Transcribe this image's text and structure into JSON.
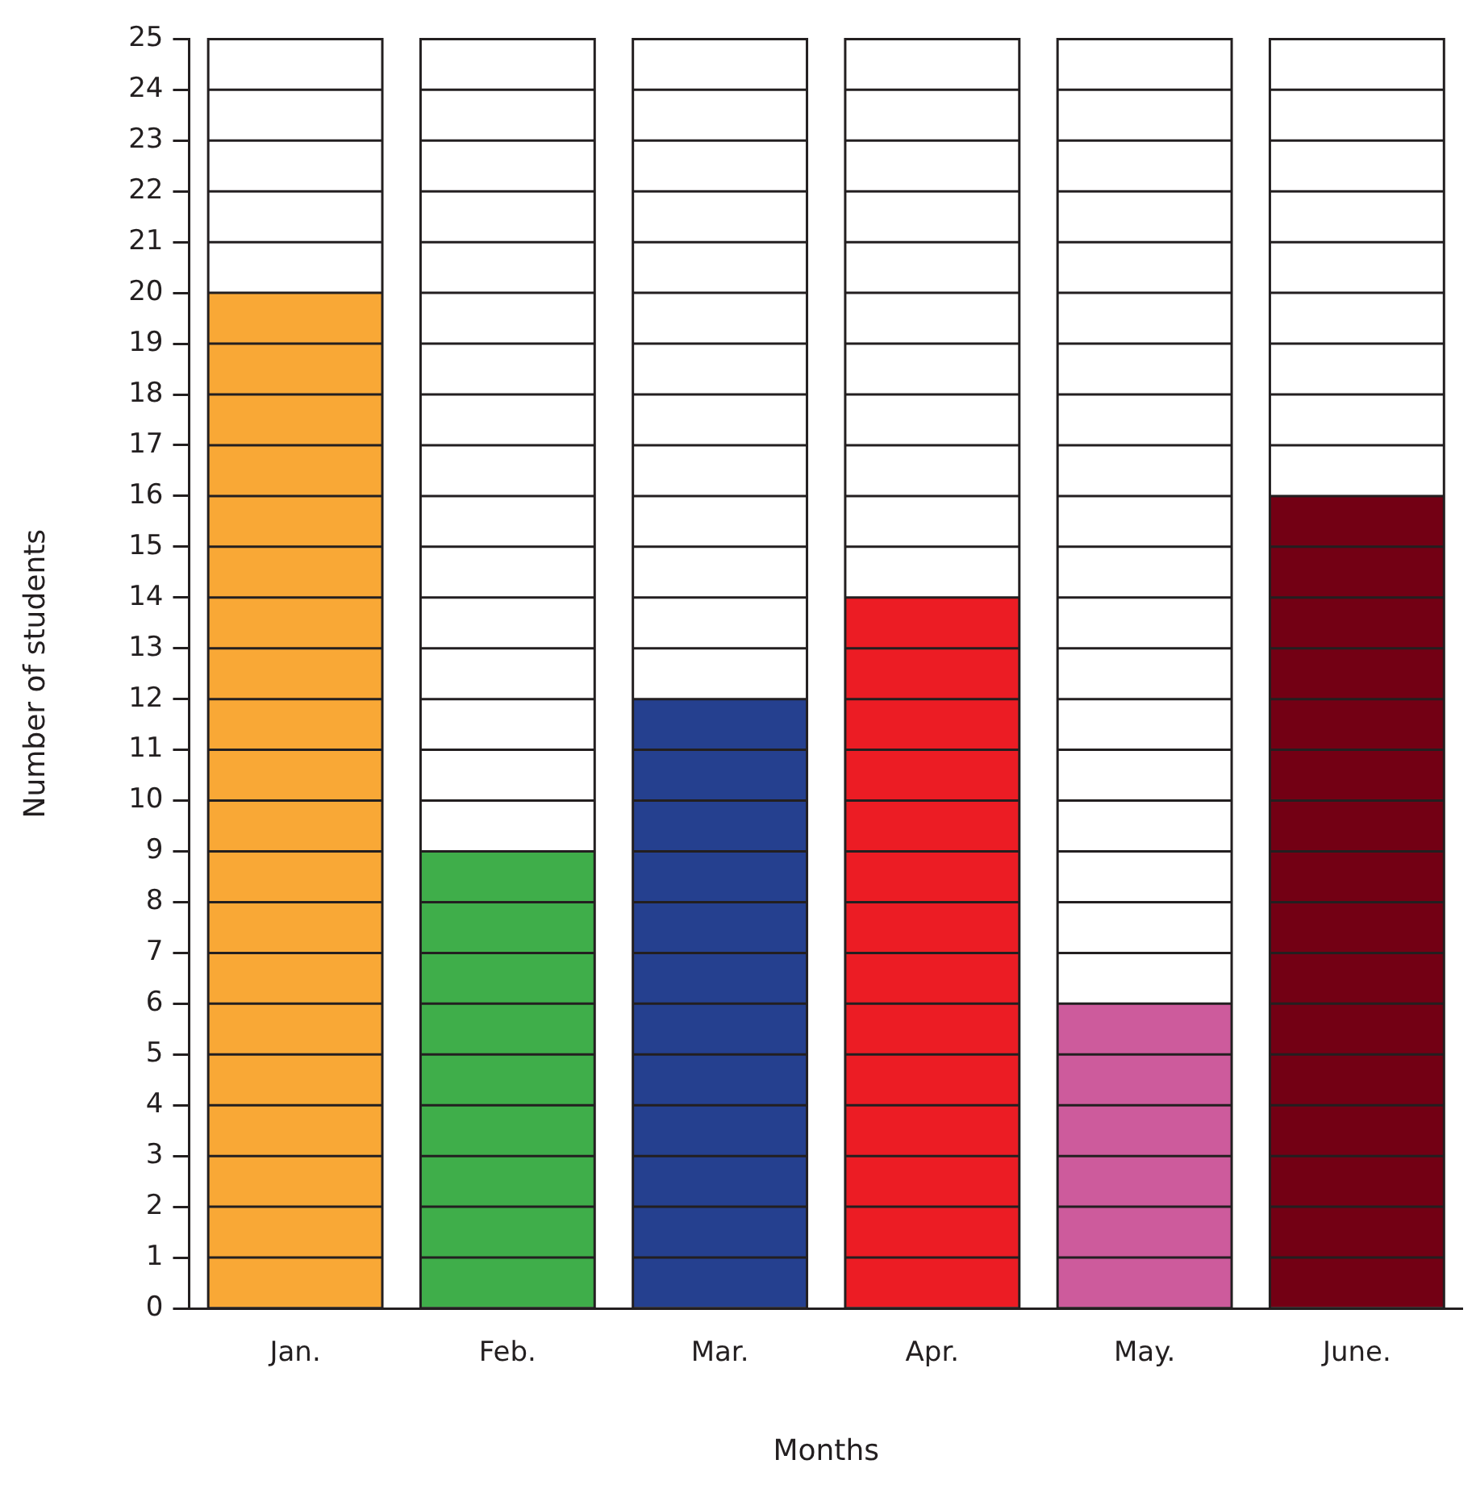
{
  "chart_data": {
    "type": "bar",
    "xlabel": "Months",
    "ylabel": "Number of students",
    "categories": [
      "Jan.",
      "Feb.",
      "Mar.",
      "Apr.",
      "May.",
      "June."
    ],
    "values": [
      20,
      9,
      12,
      14,
      6,
      16
    ],
    "colors": [
      "#f9a836",
      "#3fae4a",
      "#25408f",
      "#ec1c24",
      "#cd5b9c",
      "#730014"
    ],
    "ylim": [
      0,
      25
    ],
    "yticks": [
      0,
      1,
      2,
      3,
      4,
      5,
      6,
      7,
      8,
      9,
      10,
      11,
      12,
      13,
      14,
      15,
      16,
      17,
      18,
      19,
      20,
      21,
      22,
      23,
      24,
      25
    ],
    "grid": "y",
    "legend": false
  }
}
